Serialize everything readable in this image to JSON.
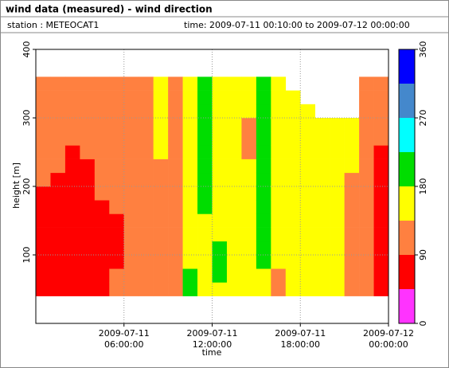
{
  "chart_data": {
    "type": "heatmap",
    "title": "wind data (measured) - wind direction",
    "station": "station : METEOCAT1",
    "period": "time: 2009-07-11 00:10:00 to 2009-07-12 00:00:00",
    "xlabel": "time",
    "ylabel": "height [m]",
    "xlim": [
      "2009-07-11 00:00:00",
      "2009-07-12 00:00:00"
    ],
    "xticks": [
      {
        "value": "2009-07-11 06:00:00",
        "label": [
          "2009-07-11",
          "06:00:00"
        ]
      },
      {
        "value": "2009-07-11 12:00:00",
        "label": [
          "2009-07-11",
          "12:00:00"
        ]
      },
      {
        "value": "2009-07-11 18:00:00",
        "label": [
          "2009-07-11",
          "18:00:00"
        ]
      },
      {
        "value": "2009-07-12 00:00:00",
        "label": [
          "2009-07-12",
          "00:00:00"
        ]
      }
    ],
    "ylim": [
      0,
      400
    ],
    "yticks": [
      100,
      200,
      300,
      400
    ],
    "grid": true,
    "xbins": [
      "2009-07-11 00:00:00",
      "2009-07-11 01:00:00",
      "2009-07-11 02:00:00",
      "2009-07-11 03:00:00",
      "2009-07-11 04:00:00",
      "2009-07-11 05:00:00",
      "2009-07-11 06:00:00",
      "2009-07-11 07:00:00",
      "2009-07-11 08:00:00",
      "2009-07-11 09:00:00",
      "2009-07-11 10:00:00",
      "2009-07-11 11:00:00",
      "2009-07-11 12:00:00",
      "2009-07-11 13:00:00",
      "2009-07-11 14:00:00",
      "2009-07-11 15:00:00",
      "2009-07-11 16:00:00",
      "2009-07-11 17:00:00",
      "2009-07-11 18:00:00",
      "2009-07-11 19:00:00",
      "2009-07-11 20:00:00",
      "2009-07-11 21:00:00",
      "2009-07-11 22:00:00",
      "2009-07-11 23:00:00",
      "2009-07-12 00:00:00"
    ],
    "ybins": [
      40,
      60,
      80,
      100,
      120,
      140,
      160,
      180,
      200,
      220,
      240,
      260,
      280,
      300,
      320,
      340,
      360
    ],
    "z": [
      [
        70,
        70,
        70,
        70,
        70,
        70,
        70,
        70,
        110,
        110,
        110,
        110,
        110,
        110,
        110,
        110
      ],
      [
        70,
        70,
        70,
        70,
        70,
        70,
        70,
        70,
        70,
        110,
        110,
        110,
        110,
        110,
        110,
        110
      ],
      [
        70,
        70,
        70,
        70,
        70,
        70,
        70,
        70,
        70,
        70,
        70,
        110,
        110,
        110,
        110,
        110
      ],
      [
        70,
        70,
        70,
        70,
        70,
        70,
        70,
        70,
        70,
        70,
        110,
        110,
        110,
        110,
        110,
        110
      ],
      [
        70,
        70,
        70,
        70,
        70,
        70,
        70,
        110,
        110,
        110,
        110,
        110,
        110,
        110,
        110,
        110
      ],
      [
        110,
        110,
        70,
        70,
        70,
        70,
        110,
        110,
        110,
        110,
        110,
        110,
        110,
        110,
        110,
        110
      ],
      [
        110,
        110,
        110,
        110,
        110,
        110,
        110,
        110,
        110,
        110,
        110,
        110,
        110,
        110,
        110,
        110
      ],
      [
        110,
        110,
        110,
        110,
        110,
        110,
        110,
        110,
        110,
        110,
        110,
        110,
        110,
        110,
        110,
        110
      ],
      [
        110,
        110,
        110,
        110,
        110,
        110,
        110,
        110,
        110,
        110,
        160,
        160,
        160,
        160,
        160,
        160
      ],
      [
        110,
        110,
        110,
        110,
        110,
        110,
        110,
        110,
        110,
        110,
        110,
        110,
        110,
        110,
        110,
        110
      ],
      [
        200,
        200,
        160,
        160,
        160,
        160,
        160,
        160,
        160,
        160,
        160,
        160,
        160,
        160,
        160,
        160
      ],
      [
        160,
        160,
        160,
        160,
        160,
        160,
        200,
        200,
        200,
        200,
        200,
        200,
        200,
        200,
        200,
        200
      ],
      [
        160,
        200,
        200,
        200,
        160,
        160,
        160,
        160,
        160,
        160,
        160,
        160,
        160,
        160,
        160,
        160
      ],
      [
        160,
        160,
        160,
        160,
        160,
        160,
        160,
        160,
        160,
        160,
        160,
        160,
        160,
        160,
        160,
        160
      ],
      [
        160,
        160,
        160,
        160,
        160,
        160,
        160,
        160,
        160,
        160,
        110,
        110,
        110,
        160,
        160,
        160
      ],
      [
        160,
        160,
        200,
        200,
        200,
        200,
        200,
        200,
        200,
        200,
        200,
        200,
        200,
        200,
        200,
        200
      ],
      [
        110,
        110,
        160,
        160,
        160,
        160,
        160,
        160,
        160,
        160,
        160,
        160,
        160,
        160,
        160,
        160
      ],
      [
        160,
        160,
        160,
        160,
        160,
        160,
        160,
        160,
        160,
        160,
        160,
        160,
        160,
        160,
        160,
        null
      ],
      [
        160,
        160,
        160,
        160,
        160,
        160,
        160,
        160,
        160,
        160,
        160,
        160,
        160,
        160,
        null,
        null
      ],
      [
        160,
        160,
        160,
        160,
        160,
        160,
        160,
        160,
        160,
        160,
        160,
        160,
        160,
        null,
        null,
        null
      ],
      [
        160,
        160,
        160,
        160,
        160,
        160,
        160,
        160,
        160,
        160,
        160,
        160,
        160,
        null,
        null,
        null
      ],
      [
        110,
        110,
        110,
        110,
        110,
        110,
        110,
        110,
        110,
        160,
        160,
        160,
        160,
        null,
        null,
        null
      ],
      [
        110,
        110,
        110,
        110,
        110,
        110,
        110,
        110,
        110,
        110,
        110,
        110,
        110,
        110,
        110,
        110
      ],
      [
        70,
        70,
        70,
        70,
        70,
        70,
        70,
        70,
        70,
        70,
        70,
        110,
        110,
        110,
        110,
        110
      ]
    ],
    "colorbar": {
      "label": "wind direction [deg]",
      "lim": [
        0,
        360
      ],
      "ticks": [
        0,
        90,
        180,
        270,
        360
      ],
      "bounds": [
        0,
        45,
        90,
        135,
        180,
        225,
        270,
        315,
        360
      ],
      "colors": [
        "#ff33ff",
        "#ff0000",
        "#ff8040",
        "#ffff00",
        "#00dd00",
        "#00ffff",
        "#4488cc",
        "#0000ff"
      ]
    }
  }
}
